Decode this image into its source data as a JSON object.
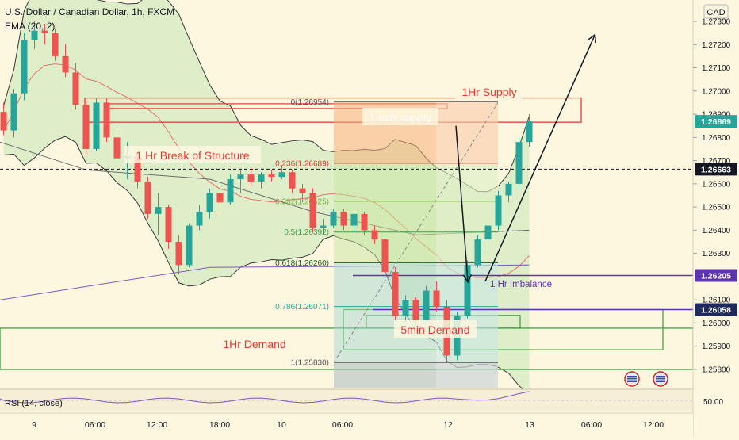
{
  "header": {
    "symbol": "U.S. Dollar / Canadian Dollar, 1h, FXCM",
    "indicator": "EMA (20, 2)"
  },
  "currency_badge": "CAD",
  "rsi_label": "RSI (14, close)",
  "rsi_axis_label": "50.00",
  "colors": {
    "up": "#26a69a",
    "down": "#ef5350",
    "supply": "#e53935",
    "demand": "#43a047",
    "imbalance": "#5e35b1",
    "band_fill": "#d8ecc4",
    "background": "#fdf7df"
  },
  "annotations": {
    "hr_supply": "1Hr Supply",
    "min_supply": "1 min supply",
    "bos": "1 Hr Break of Structure",
    "hr_demand": "1Hr Demand",
    "min5_demand": "5min Demand",
    "imbalance": "1 Hr Imbalance"
  },
  "chart_data": {
    "type": "candlestick",
    "title": "U.S. Dollar / Canadian Dollar, 1h, FXCM",
    "y_ticks": [
      1.273,
      1.272,
      1.271,
      1.27,
      1.269,
      1.268,
      1.267,
      1.266,
      1.265,
      1.264,
      1.263,
      1.261,
      1.26,
      1.259,
      1.258
    ],
    "y_tick_labels": [
      "1.27300",
      "1.27200",
      "1.27100",
      "1.27000",
      "1.26900",
      "1.26800",
      "1.26700",
      "1.26600",
      "1.26500",
      "1.26400",
      "1.26300",
      "1.26100",
      "1.26000",
      "1.25900",
      "1.25800"
    ],
    "x_tick_labels": [
      {
        "label": "9",
        "x": 43
      },
      {
        "label": "06:00",
        "x": 120
      },
      {
        "label": "12:00",
        "x": 198
      },
      {
        "label": "18:00",
        "x": 277
      },
      {
        "label": "10",
        "x": 355
      },
      {
        "label": "06:00",
        "x": 432
      },
      {
        "label": "12",
        "x": 565
      },
      {
        "label": "13",
        "x": 668
      },
      {
        "label": "06:00",
        "x": 746
      },
      {
        "label": "12:00",
        "x": 824
      }
    ],
    "price_tags": [
      {
        "label": "1.26869",
        "value": 1.26869,
        "color": "#26a69a"
      },
      {
        "label": "1.26663",
        "value": 1.26663,
        "color": "#131722"
      },
      {
        "label": "1.26205",
        "value": 1.26205,
        "color": "#5e35b1"
      },
      {
        "label": "1.26058",
        "value": 1.26058,
        "color": "#1e2a5e"
      }
    ],
    "fib_levels": [
      {
        "label": "0(1.26954)",
        "value": 1.26954,
        "color": "#555"
      },
      {
        "label": "0.236(1.26689)",
        "value": 1.26689,
        "color": "#e53935"
      },
      {
        "label": "0.382(1.26525)",
        "value": 1.26525,
        "color": "#7cb342"
      },
      {
        "label": "0.5(1.26392)",
        "value": 1.26392,
        "color": "#43a047"
      },
      {
        "label": "0.618(1.26260)",
        "value": 1.2626,
        "color": "#1b5e20"
      },
      {
        "label": "0.786(1.26071)",
        "value": 1.26071,
        "color": "#26a69a"
      },
      {
        "label": "1(1.25830)",
        "value": 1.2583,
        "color": "#555"
      }
    ],
    "candles": [
      [
        1.2691,
        1.2695,
        1.2681,
        1.2683
      ],
      [
        1.2683,
        1.2701,
        1.268,
        1.2699
      ],
      [
        1.2699,
        1.2725,
        1.2696,
        1.2722
      ],
      [
        1.2722,
        1.273,
        1.2718,
        1.2726
      ],
      [
        1.2726,
        1.2729,
        1.272,
        1.2725
      ],
      [
        1.2725,
        1.2727,
        1.2713,
        1.2715
      ],
      [
        1.2715,
        1.272,
        1.2706,
        1.2708
      ],
      [
        1.2708,
        1.2712,
        1.2692,
        1.2694
      ],
      [
        1.2694,
        1.2696,
        1.2673,
        1.2675
      ],
      [
        1.2675,
        1.2697,
        1.2674,
        1.2695
      ],
      [
        1.2695,
        1.2697,
        1.2678,
        1.268
      ],
      [
        1.268,
        1.2683,
        1.2669,
        1.2671
      ],
      [
        1.2671,
        1.2678,
        1.2662,
        1.2672
      ],
      [
        1.2672,
        1.2674,
        1.2658,
        1.2661
      ],
      [
        1.2661,
        1.2663,
        1.2645,
        1.2647
      ],
      [
        1.2647,
        1.2656,
        1.2638,
        1.265
      ],
      [
        1.265,
        1.2651,
        1.2632,
        1.2635
      ],
      [
        1.2635,
        1.2638,
        1.2621,
        1.2625
      ],
      [
        1.2625,
        1.2643,
        1.2624,
        1.2642
      ],
      [
        1.2642,
        1.2651,
        1.264,
        1.2648
      ],
      [
        1.2648,
        1.2658,
        1.2645,
        1.2656
      ],
      [
        1.2656,
        1.266,
        1.2647,
        1.2652
      ],
      [
        1.2652,
        1.2664,
        1.2651,
        1.2662
      ],
      [
        1.2662,
        1.2666,
        1.2656,
        1.2664
      ],
      [
        1.2664,
        1.2667,
        1.2659,
        1.2661
      ],
      [
        1.2661,
        1.2665,
        1.2658,
        1.2664
      ],
      [
        1.2664,
        1.2666,
        1.2661,
        1.2663
      ],
      [
        1.2663,
        1.2668,
        1.2662,
        1.2665
      ],
      [
        1.2665,
        1.2666,
        1.2656,
        1.2658
      ],
      [
        1.2658,
        1.266,
        1.2652,
        1.2656
      ],
      [
        1.2656,
        1.2658,
        1.2639,
        1.2641
      ],
      [
        1.2641,
        1.2645,
        1.2638,
        1.2642
      ],
      [
        1.2642,
        1.2649,
        1.2641,
        1.2648
      ],
      [
        1.2648,
        1.2649,
        1.264,
        1.2642
      ],
      [
        1.2642,
        1.2648,
        1.2639,
        1.2647
      ],
      [
        1.2647,
        1.2648,
        1.2638,
        1.264
      ],
      [
        1.264,
        1.2642,
        1.2634,
        1.2636
      ],
      [
        1.2636,
        1.2638,
        1.262,
        1.2622
      ],
      [
        1.2622,
        1.2624,
        1.2601,
        1.2603
      ],
      [
        1.2603,
        1.2612,
        1.26,
        1.261
      ],
      [
        1.261,
        1.2611,
        1.2598,
        1.2601
      ],
      [
        1.2601,
        1.2616,
        1.26,
        1.2614
      ],
      [
        1.2614,
        1.2618,
        1.2605,
        1.2607
      ],
      [
        1.2607,
        1.261,
        1.2583,
        1.2586
      ],
      [
        1.2586,
        1.2605,
        1.2584,
        1.2603
      ],
      [
        1.2603,
        1.2627,
        1.2602,
        1.2625
      ],
      [
        1.2625,
        1.2638,
        1.2624,
        1.2636
      ],
      [
        1.2636,
        1.2643,
        1.2632,
        1.2642
      ],
      [
        1.2642,
        1.2657,
        1.264,
        1.2655
      ],
      [
        1.2655,
        1.2661,
        1.2652,
        1.266
      ],
      [
        1.266,
        1.268,
        1.2658,
        1.2678
      ],
      [
        1.2678,
        1.269,
        1.2676,
        1.26869
      ]
    ]
  }
}
